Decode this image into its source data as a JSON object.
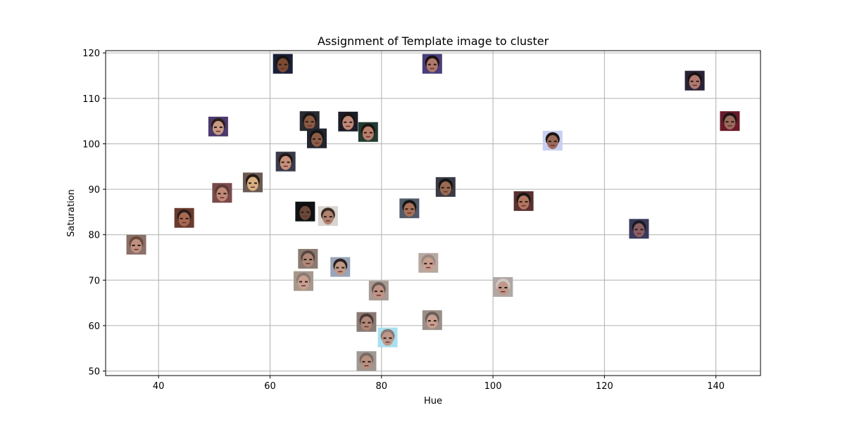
{
  "chart_data": {
    "type": "scatter",
    "title": "Assignment of Template image to cluster",
    "xlabel": "Hue",
    "ylabel": "Saturation",
    "xlim": [
      30.5,
      148
    ],
    "ylim": [
      49,
      120.5
    ],
    "xticks": [
      40,
      60,
      80,
      100,
      120,
      140
    ],
    "yticks": [
      50,
      60,
      70,
      80,
      90,
      100,
      110,
      120
    ],
    "grid": true,
    "marker": "face-thumbnail",
    "points": [
      {
        "x": 62.3,
        "y": 117.6,
        "skin": "#7b4a32",
        "bg": "#1a1f38",
        "hair": "#141414"
      },
      {
        "x": 89.1,
        "y": 117.6,
        "skin": "#b0786a",
        "bg": "#4a3d7a",
        "hair": "#1a1210"
      },
      {
        "x": 136.2,
        "y": 113.9,
        "skin": "#b07a70",
        "bg": "#2a2336",
        "hair": "#181212"
      },
      {
        "x": 50.7,
        "y": 103.8,
        "skin": "#c89a86",
        "bg": "#4c3a6c",
        "hair": "#2a1d18"
      },
      {
        "x": 67.1,
        "y": 105.0,
        "skin": "#8a5a42",
        "bg": "#2a2a30",
        "hair": "#161616"
      },
      {
        "x": 74.0,
        "y": 104.9,
        "skin": "#c08a78",
        "bg": "#1c1c28",
        "hair": "#1a1412"
      },
      {
        "x": 68.4,
        "y": 101.2,
        "skin": "#8e5e46",
        "bg": "#22242e",
        "hair": "#141414"
      },
      {
        "x": 77.6,
        "y": 102.6,
        "skin": "#b8806a",
        "bg": "#1f3b32",
        "hair": "#1a1410"
      },
      {
        "x": 142.5,
        "y": 105.0,
        "skin": "#9a6a5c",
        "bg": "#6a1a2a",
        "hair": "#1a1414"
      },
      {
        "x": 110.7,
        "y": 100.7,
        "skin": "#9a6a58",
        "bg": "#c8cef0",
        "hair": "#1a1414"
      },
      {
        "x": 62.8,
        "y": 96.1,
        "skin": "#c8907a",
        "bg": "#3a3a4a",
        "hair": "#1e1614"
      },
      {
        "x": 56.9,
        "y": 91.5,
        "skin": "#d8b080",
        "bg": "#6a5a52",
        "hair": "#241a16"
      },
      {
        "x": 51.4,
        "y": 89.2,
        "skin": "#c08878",
        "bg": "#7a4a4a",
        "hair": "#5a3a36"
      },
      {
        "x": 91.5,
        "y": 90.5,
        "skin": "#9a6a52",
        "bg": "#3a3a44",
        "hair": "#141414"
      },
      {
        "x": 44.6,
        "y": 83.7,
        "skin": "#a86a52",
        "bg": "#6a3a2e",
        "hair": "#2a1e1a"
      },
      {
        "x": 85.0,
        "y": 85.8,
        "skin": "#a87258",
        "bg": "#505a6a",
        "hair": "#161414"
      },
      {
        "x": 105.5,
        "y": 87.4,
        "skin": "#b07660",
        "bg": "#5a3030",
        "hair": "#181414"
      },
      {
        "x": 66.3,
        "y": 85.1,
        "skin": "#6a4838",
        "bg": "#101214",
        "hair": "#0e0e0e"
      },
      {
        "x": 70.4,
        "y": 84.1,
        "skin": "#b08270",
        "bg": "#d8d4d0",
        "hair": "#3a2a22"
      },
      {
        "x": 126.2,
        "y": 81.3,
        "skin": "#8a6064",
        "bg": "#3a3a5c",
        "hair": "#1a1a22"
      },
      {
        "x": 36.0,
        "y": 77.8,
        "skin": "#c09080",
        "bg": "#8a7068",
        "hair": "#6a4a3a"
      },
      {
        "x": 66.8,
        "y": 74.7,
        "skin": "#b08878",
        "bg": "#8a7a70",
        "hair": "#5a4640"
      },
      {
        "x": 72.6,
        "y": 72.9,
        "skin": "#c09a88",
        "bg": "#9aa4b8",
        "hair": "#2a2020"
      },
      {
        "x": 88.4,
        "y": 73.8,
        "skin": "#c8a090",
        "bg": "#b8a8a0",
        "hair": "#9a8a84"
      },
      {
        "x": 66.0,
        "y": 69.8,
        "skin": "#c8a090",
        "bg": "#a8988c",
        "hair": "#8a7a74"
      },
      {
        "x": 101.8,
        "y": 68.5,
        "skin": "#c0988a",
        "bg": "#b0a8a4",
        "hair": "#d0c8c4"
      },
      {
        "x": 79.5,
        "y": 67.7,
        "skin": "#c09484",
        "bg": "#a89a94",
        "hair": "#6a5a54"
      },
      {
        "x": 77.3,
        "y": 60.8,
        "skin": "#b08878",
        "bg": "#8a7a74",
        "hair": "#4a3a34"
      },
      {
        "x": 89.1,
        "y": 61.2,
        "skin": "#c8a090",
        "bg": "#9a8e88",
        "hair": "#6a5e58"
      },
      {
        "x": 81.1,
        "y": 57.4,
        "skin": "#c0988a",
        "bg": "#a8e0f0",
        "hair": "#8a7a74"
      },
      {
        "x": 77.3,
        "y": 52.2,
        "skin": "#b89080",
        "bg": "#a09894",
        "hair": "#7a6a64"
      }
    ]
  }
}
